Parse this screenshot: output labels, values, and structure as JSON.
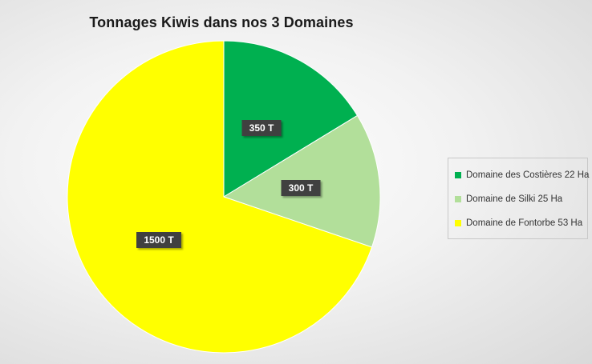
{
  "chart_data": {
    "type": "pie",
    "title": "Tonnages Kiwis dans nos 3 Domaines",
    "categories": [
      "Domaine des Costières 22 Ha",
      "Domaine de Silki 25 Ha",
      "Domaine de Fontorbe 53 Ha"
    ],
    "values": [
      350,
      300,
      1500
    ],
    "data_labels": [
      "350 T",
      "300 T",
      "1500 T"
    ],
    "colors": [
      "#00b050",
      "#b2df9a",
      "#ffff00"
    ],
    "legend_position": "right"
  }
}
